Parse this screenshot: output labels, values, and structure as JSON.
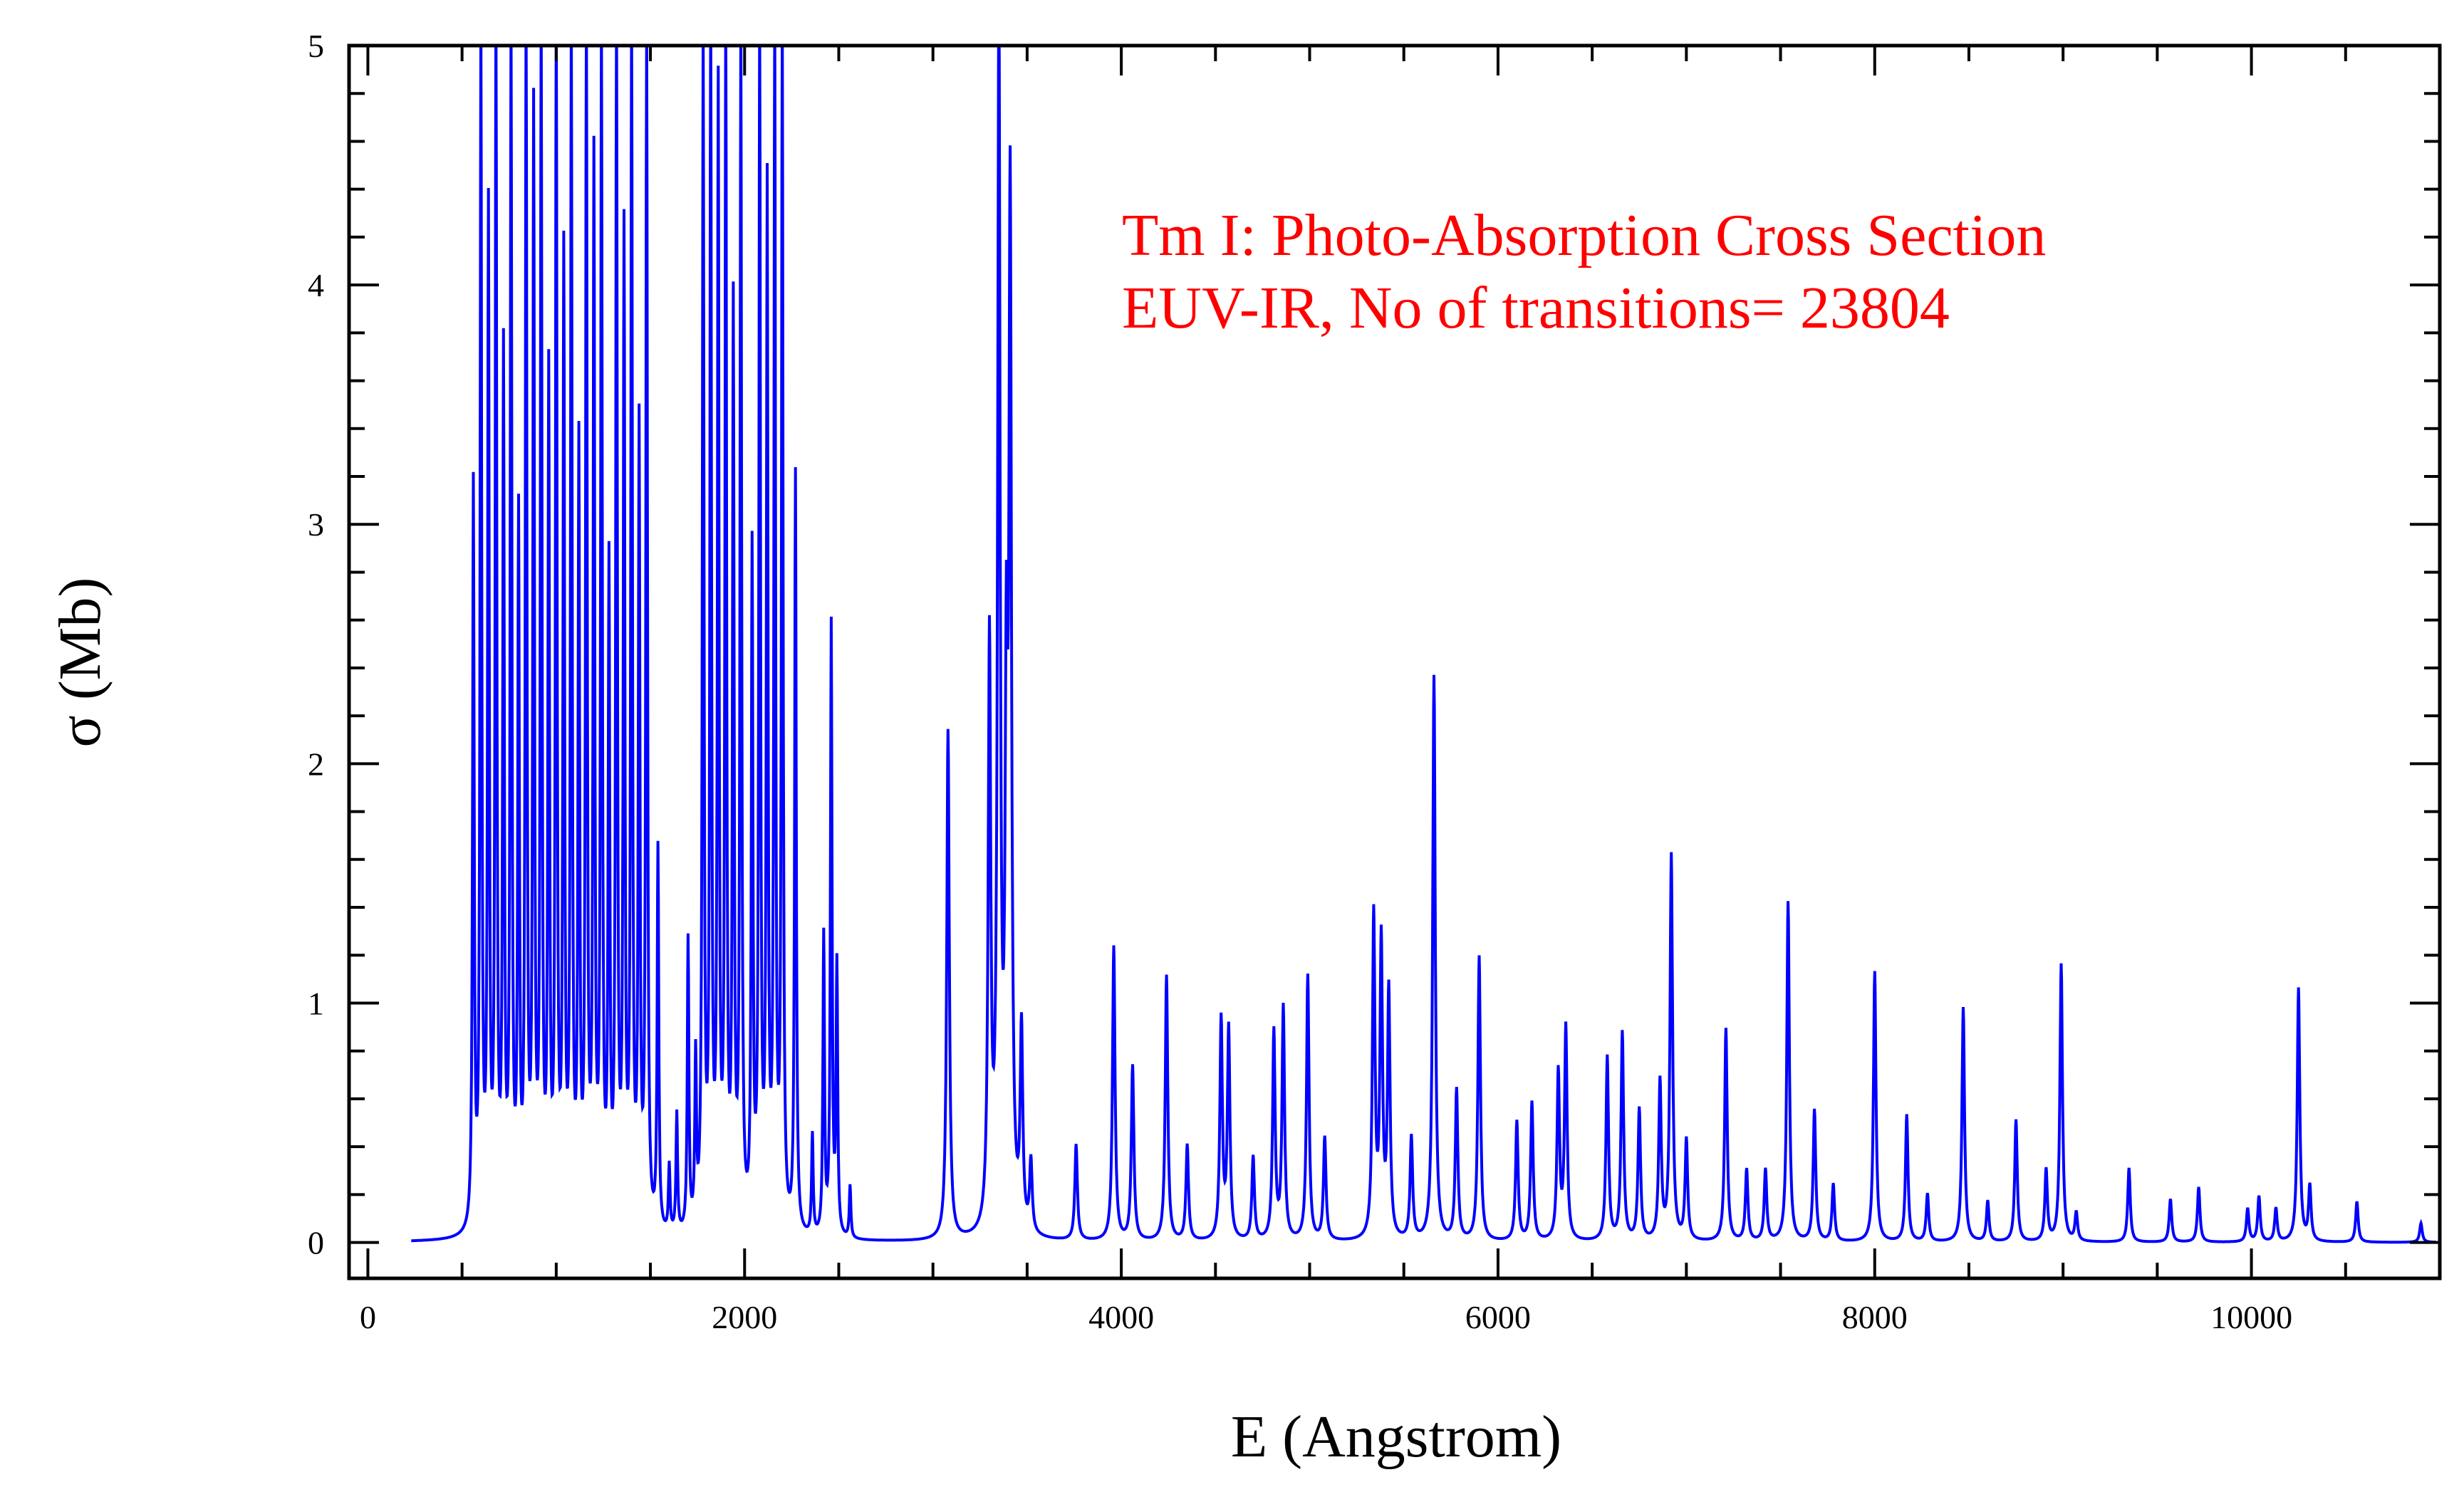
{
  "chart_data": {
    "type": "line",
    "title": "",
    "xlabel": "E (Angstrom)",
    "ylabel": "σ (Mb)",
    "xlim": [
      -100,
      11000
    ],
    "ylim": [
      -0.15,
      5
    ],
    "x_ticks": [
      0,
      2000,
      4000,
      6000,
      8000,
      10000
    ],
    "x_tick_labels": [
      "0",
      "2000",
      "4000",
      "6000",
      "8000",
      "10000"
    ],
    "y_ticks": [
      0,
      1,
      2,
      3,
      4,
      5
    ],
    "y_tick_labels": [
      "0",
      "1",
      "2",
      "3",
      "4",
      "5"
    ],
    "grid": false,
    "legend": "none",
    "annotations": [
      "Tm I: Photo-Absorption Cross Section",
      "EUV-IR, No of transitions= 23804"
    ],
    "colors": {
      "series": "#0000ff",
      "annotation": "#ff0000",
      "axes": "#000000"
    },
    "series": [
      {
        "name": "",
        "peaks": [
          [
            560,
            3.1
          ],
          [
            600,
            5
          ],
          [
            640,
            4.2
          ],
          [
            680,
            5
          ],
          [
            720,
            3.6
          ],
          [
            760,
            5
          ],
          [
            800,
            2.9
          ],
          [
            840,
            5
          ],
          [
            880,
            4.6
          ],
          [
            920,
            5
          ],
          [
            960,
            3.5
          ],
          [
            1000,
            5
          ],
          [
            1040,
            4.0
          ],
          [
            1080,
            5
          ],
          [
            1120,
            3.2
          ],
          [
            1160,
            5
          ],
          [
            1200,
            4.4
          ],
          [
            1240,
            5
          ],
          [
            1280,
            2.7
          ],
          [
            1320,
            5
          ],
          [
            1360,
            4.1
          ],
          [
            1400,
            5
          ],
          [
            1440,
            3.3
          ],
          [
            1480,
            5
          ],
          [
            1540,
            1.6
          ],
          [
            1600,
            0.28
          ],
          [
            1640,
            0.5
          ],
          [
            1700,
            1.22
          ],
          [
            1740,
            0.7
          ],
          [
            1780,
            5
          ],
          [
            1820,
            5
          ],
          [
            1860,
            4.7
          ],
          [
            1900,
            5
          ],
          [
            1940,
            3.8
          ],
          [
            1980,
            5
          ],
          [
            2040,
            2.8
          ],
          [
            2080,
            5
          ],
          [
            2120,
            4.3
          ],
          [
            2160,
            5
          ],
          [
            2200,
            5
          ],
          [
            2270,
            3.18
          ],
          [
            2360,
            0.42
          ],
          [
            2420,
            1.25
          ],
          [
            2460,
            2.55
          ],
          [
            2490,
            1.12
          ],
          [
            2560,
            0.22
          ],
          [
            3080,
            2.13
          ],
          [
            3300,
            2.45
          ],
          [
            3350,
            5
          ],
          [
            3390,
            2.05
          ],
          [
            3410,
            4.18
          ],
          [
            3470,
            0.83
          ],
          [
            3520,
            0.3
          ],
          [
            3760,
            0.4
          ],
          [
            3960,
            1.23
          ],
          [
            4060,
            0.73
          ],
          [
            4240,
            1.11
          ],
          [
            4350,
            0.4
          ],
          [
            4530,
            0.92
          ],
          [
            4570,
            0.88
          ],
          [
            4700,
            0.35
          ],
          [
            4810,
            0.87
          ],
          [
            4860,
            0.97
          ],
          [
            4990,
            1.11
          ],
          [
            5080,
            0.43
          ],
          [
            5340,
            1.35
          ],
          [
            5380,
            1.23
          ],
          [
            5420,
            1.03
          ],
          [
            5540,
            0.43
          ],
          [
            5660,
            2.36
          ],
          [
            5780,
            0.63
          ],
          [
            5900,
            1.19
          ],
          [
            6100,
            0.5
          ],
          [
            6180,
            0.58
          ],
          [
            6320,
            0.7
          ],
          [
            6360,
            0.89
          ],
          [
            6580,
            0.77
          ],
          [
            6660,
            0.87
          ],
          [
            6750,
            0.55
          ],
          [
            6860,
            0.66
          ],
          [
            6920,
            1.61
          ],
          [
            7000,
            0.42
          ],
          [
            7210,
            0.89
          ],
          [
            7320,
            0.3
          ],
          [
            7420,
            0.3
          ],
          [
            7540,
            1.42
          ],
          [
            7680,
            0.55
          ],
          [
            7780,
            0.24
          ],
          [
            8000,
            1.13
          ],
          [
            8170,
            0.53
          ],
          [
            8280,
            0.2
          ],
          [
            8470,
            0.98
          ],
          [
            8600,
            0.17
          ],
          [
            8750,
            0.51
          ],
          [
            8910,
            0.3
          ],
          [
            8990,
            1.16
          ],
          [
            9070,
            0.12
          ],
          [
            9350,
            0.31
          ],
          [
            9570,
            0.18
          ],
          [
            9720,
            0.23
          ],
          [
            9980,
            0.14
          ],
          [
            10040,
            0.19
          ],
          [
            10130,
            0.14
          ],
          [
            10250,
            1.06
          ],
          [
            10310,
            0.23
          ],
          [
            10560,
            0.17
          ],
          [
            10900,
            0.08
          ]
        ]
      }
    ]
  }
}
